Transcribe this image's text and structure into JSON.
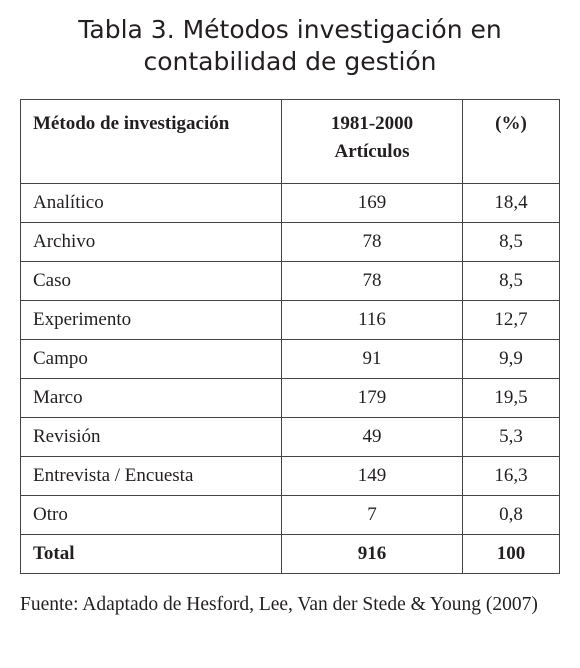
{
  "header": {
    "title_lines": [
      "Tabla 3. Métodos investigación en",
      "contabilidad de gestión"
    ]
  },
  "table": {
    "header": [
      [
        "Método de investigación"
      ],
      [
        "1981-2000",
        "Artículos"
      ],
      [
        "(%)"
      ]
    ],
    "rows": [
      [
        "Analítico",
        "169",
        "18,4"
      ],
      [
        "Archivo",
        "78",
        "8,5"
      ],
      [
        "Caso",
        "78",
        "8,5"
      ],
      [
        "Experimento",
        "116",
        "12,7"
      ],
      [
        "Campo",
        "91",
        "9,9"
      ],
      [
        "Marco",
        "179",
        "19,5"
      ],
      [
        "Revisión",
        "49",
        "5,3"
      ],
      [
        "Entrevista / Encuesta",
        "149",
        "16,3"
      ],
      [
        "Otro",
        "7",
        "0,8"
      ]
    ],
    "total": [
      "Total",
      "916",
      "100"
    ]
  },
  "source": "Fuente: Adaptado de Hesford, Lee, Van der Stede & Young (2007)"
}
